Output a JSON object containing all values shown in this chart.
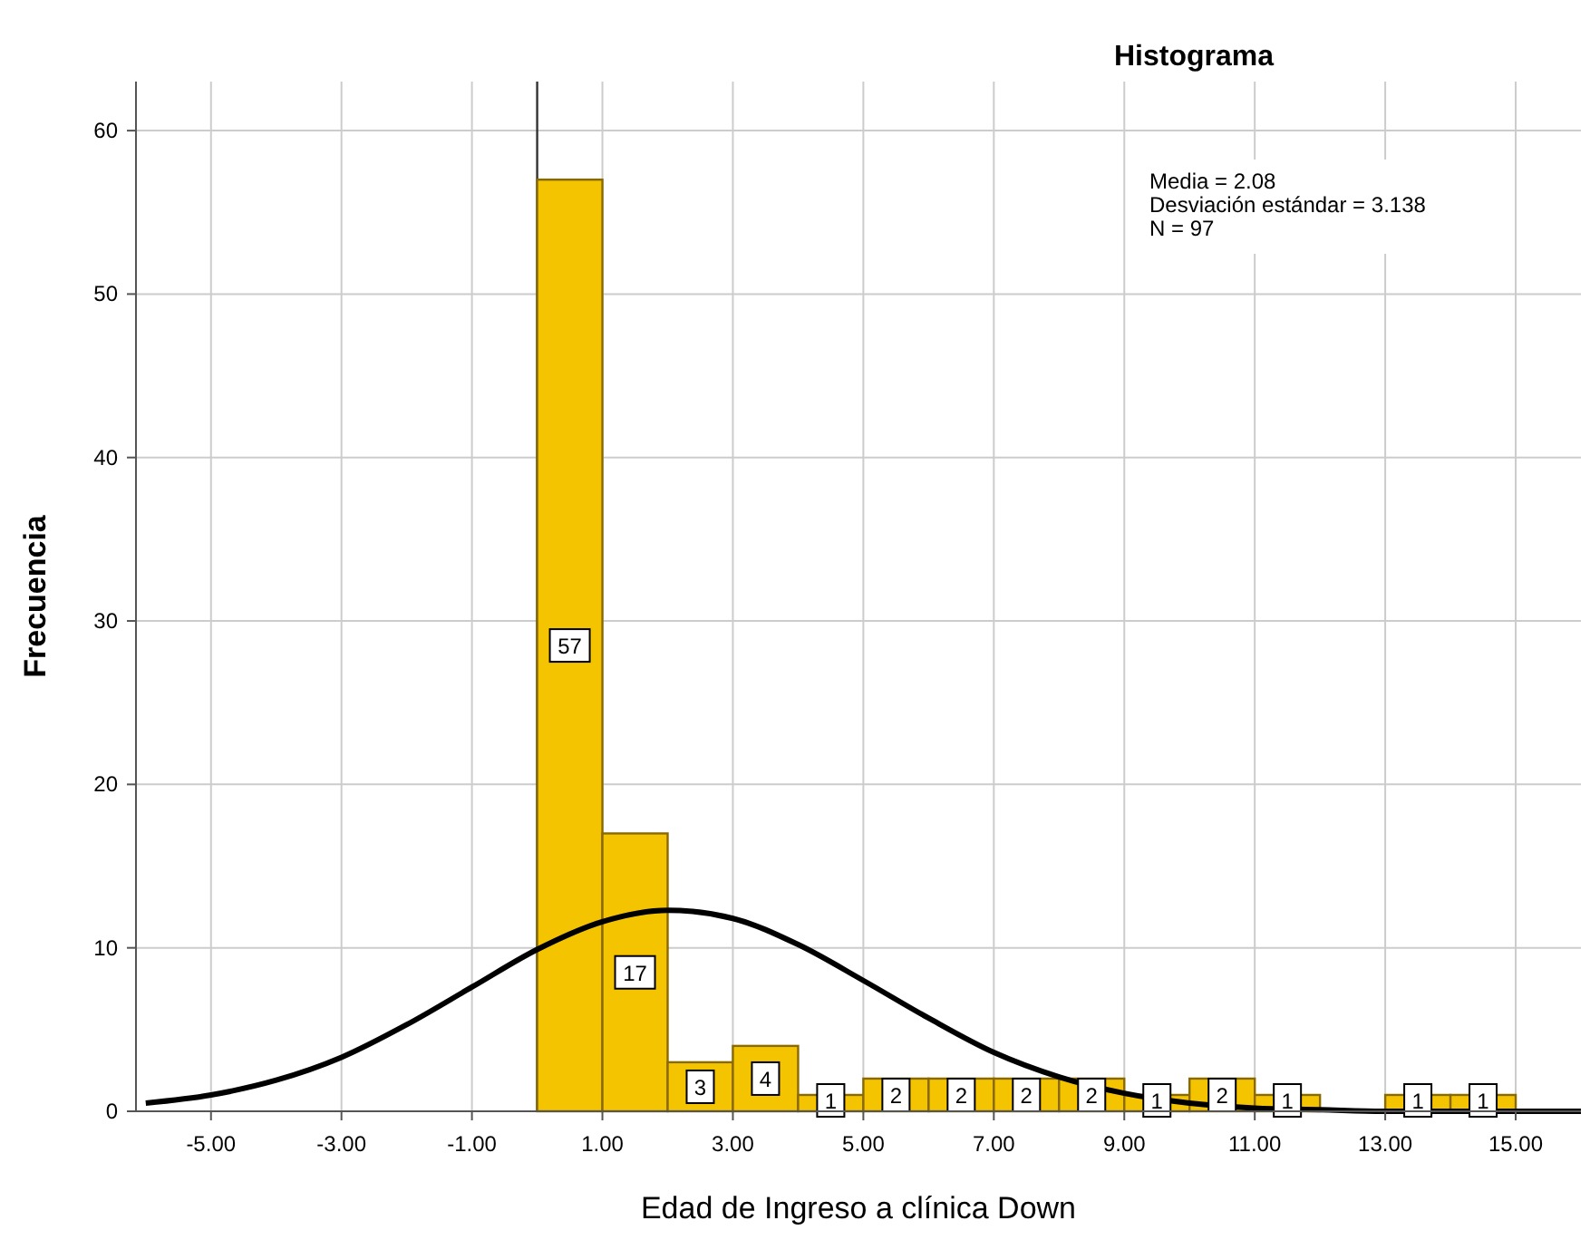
{
  "chart_data": {
    "type": "histogram",
    "title": "Histograma",
    "xlabel": "Edad de Ingreso a clínica Down",
    "ylabel": "Frecuencia",
    "bins": [
      0,
      1,
      2,
      3,
      4,
      5,
      6,
      7,
      8,
      9,
      10,
      11,
      12,
      13,
      14,
      15
    ],
    "values": [
      57,
      17,
      3,
      4,
      1,
      2,
      2,
      2,
      2,
      1,
      2,
      1,
      0,
      1,
      1
    ],
    "value_labels": [
      "57",
      "17",
      "3",
      "4",
      "1",
      "2",
      "2",
      "2",
      "2",
      "1",
      "2",
      "1",
      null,
      "1",
      "1"
    ],
    "color": "#f5c400",
    "series": [
      {
        "type": "line",
        "color": "#000000",
        "x": [
          -6,
          -5,
          -4,
          -3,
          -2,
          -1,
          0,
          1,
          2,
          3,
          4,
          5,
          6,
          7,
          8,
          9,
          10,
          11,
          12,
          13,
          14,
          15,
          16
        ],
        "values": [
          0.5,
          1,
          1.9,
          3.3,
          5.3,
          7.6,
          9.9,
          11.6,
          12.3,
          11.8,
          10.2,
          8,
          5.7,
          3.6,
          2.1,
          1.1,
          0.5,
          0.2,
          0.1,
          0,
          0,
          0,
          0
        ]
      }
    ],
    "xlim": [
      -6.15,
      16
    ],
    "xticks": [
      {
        "value": -5,
        "label": "-5.00"
      },
      {
        "value": -3,
        "label": "-3.00"
      },
      {
        "value": -1,
        "label": "-1.00"
      },
      {
        "value": 1,
        "label": "1.00"
      },
      {
        "value": 3,
        "label": "3.00"
      },
      {
        "value": 5,
        "label": "5.00"
      },
      {
        "value": 7,
        "label": "7.00"
      },
      {
        "value": 9,
        "label": "9.00"
      },
      {
        "value": 11,
        "label": "11.00"
      },
      {
        "value": 13,
        "label": "13.00"
      },
      {
        "value": 15,
        "label": "15.00"
      }
    ],
    "ylim": [
      0,
      63
    ],
    "yticks": [
      0,
      10,
      20,
      30,
      40,
      50,
      60
    ],
    "grid": true,
    "marker": "none",
    "line_style": "solid",
    "ref_lines": [
      {
        "axis": "x",
        "value": 0,
        "color": "#333333"
      }
    ],
    "annotations": [
      "Media = 2.08",
      "Desviación estándar = 3.138",
      "N = 97"
    ]
  }
}
